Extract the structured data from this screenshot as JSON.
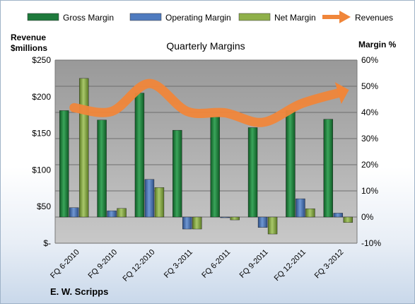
{
  "legend": {
    "items": [
      {
        "name": "Gross Margin",
        "color": "#1e7a3c",
        "kind": "bar"
      },
      {
        "name": "Operating Margin",
        "color": "#4f7bbf",
        "kind": "bar"
      },
      {
        "name": "Net Margin",
        "color": "#8fb04a",
        "kind": "bar"
      },
      {
        "name": "Revenues",
        "color": "#f0863a",
        "kind": "line"
      }
    ]
  },
  "footer": {
    "company": "E. W. Scripps"
  },
  "chart_data": {
    "type": "bar",
    "title": "Quarterly Margins",
    "ylabel_left": "Revenue\n$millions",
    "ylabel_right": "Margin %",
    "categories": [
      "FQ 6-2010",
      "FQ 9-2010",
      "FQ 12-2010",
      "FQ 3-2011",
      "FQ 6-2011",
      "FQ 9-2011",
      "FQ 12-2011",
      "FQ 3-2012"
    ],
    "left_axis": {
      "range": [
        0,
        250
      ],
      "ticks": [
        "$-",
        "$50",
        "$100",
        "$150",
        "$200",
        "$250"
      ],
      "tick_values": [
        0,
        50,
        100,
        150,
        200,
        250
      ]
    },
    "right_axis": {
      "range": [
        -10,
        60
      ],
      "ticks": [
        "-10%",
        "0%",
        "10%",
        "20%",
        "30%",
        "40%",
        "50%",
        "60%"
      ],
      "tick_values": [
        -10,
        0,
        10,
        20,
        30,
        40,
        50,
        60
      ]
    },
    "series": [
      {
        "name": "Gross Margin",
        "axis": "right",
        "values": [
          40.7,
          37.1,
          47.4,
          33.2,
          38.3,
          34.2,
          40.7,
          37.4
        ]
      },
      {
        "name": "Operating Margin",
        "axis": "right",
        "values": [
          3.6,
          2.4,
          14.4,
          -4.6,
          -0.1,
          -4.0,
          7.0,
          1.5
        ]
      },
      {
        "name": "Net Margin",
        "axis": "right",
        "values": [
          53.0,
          3.3,
          11.3,
          -4.6,
          -1.1,
          -6.5,
          3.2,
          -2.1
        ]
      },
      {
        "name": "Revenues",
        "axis": "left",
        "type": "line",
        "values": [
          185,
          180,
          218,
          180,
          178,
          165,
          190,
          205
        ]
      }
    ],
    "grid": true,
    "legend_position": "top"
  }
}
